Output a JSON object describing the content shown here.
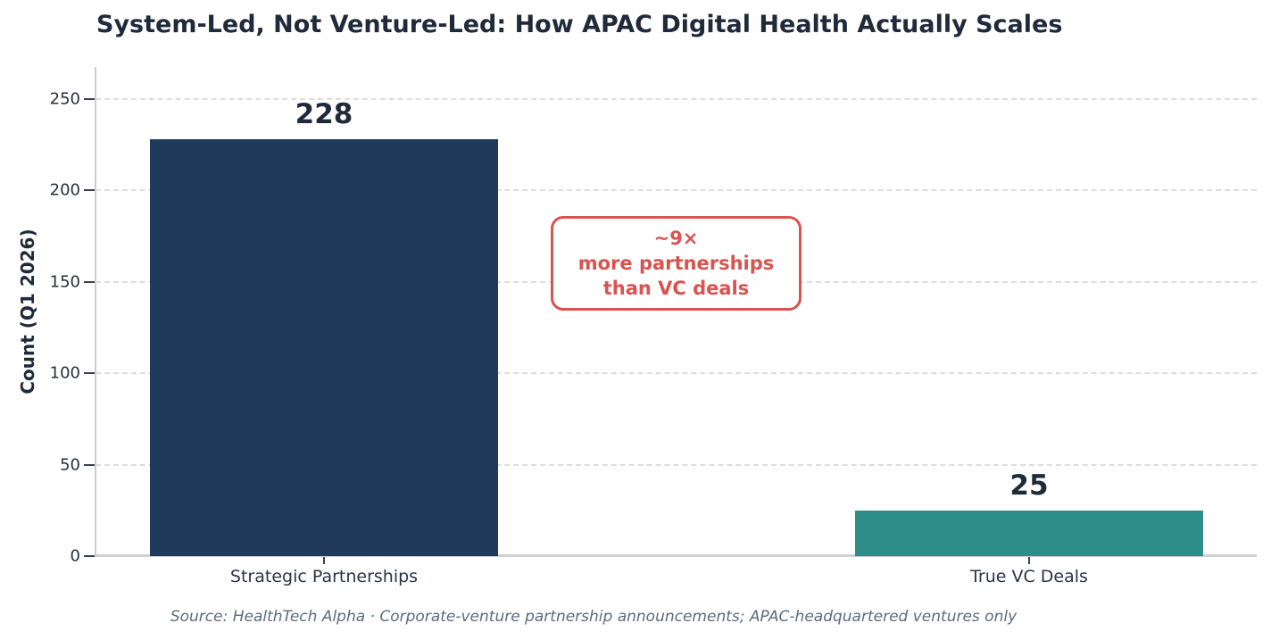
{
  "title": "System-Led, Not Venture-Led: How APAC Digital Health Actually Scales",
  "annotation": {
    "lines": [
      "~9×",
      "more partnerships",
      "than VC deals"
    ]
  },
  "source": "Source: HealthTech Alpha · Corporate-venture partnership announcements; APAC-headquartered ventures only",
  "chart_data": {
    "type": "bar",
    "title": "System-Led, Not Venture-Led: How APAC Digital Health Actually Scales",
    "categories": [
      "Strategic Partnerships",
      "True VC Deals"
    ],
    "values": [
      228,
      25
    ],
    "value_labels": [
      "228",
      "25"
    ],
    "bar_colors": [
      "#203a5c",
      "#2d8e89"
    ],
    "xlabel": "",
    "ylabel": "Count (Q1 2026)",
    "ylim": [
      0,
      260
    ],
    "yticks": [
      0,
      50,
      100,
      150,
      200,
      250
    ],
    "grid": "horizontal dashed gridlines",
    "legend": "none",
    "annotation": "~9×\nmore partnerships\nthan VC deals",
    "annotation_color": "#d9534f",
    "source_note": "Source: HealthTech Alpha · Corporate-venture partnership announcements; APAC-headquartered ventures only"
  }
}
